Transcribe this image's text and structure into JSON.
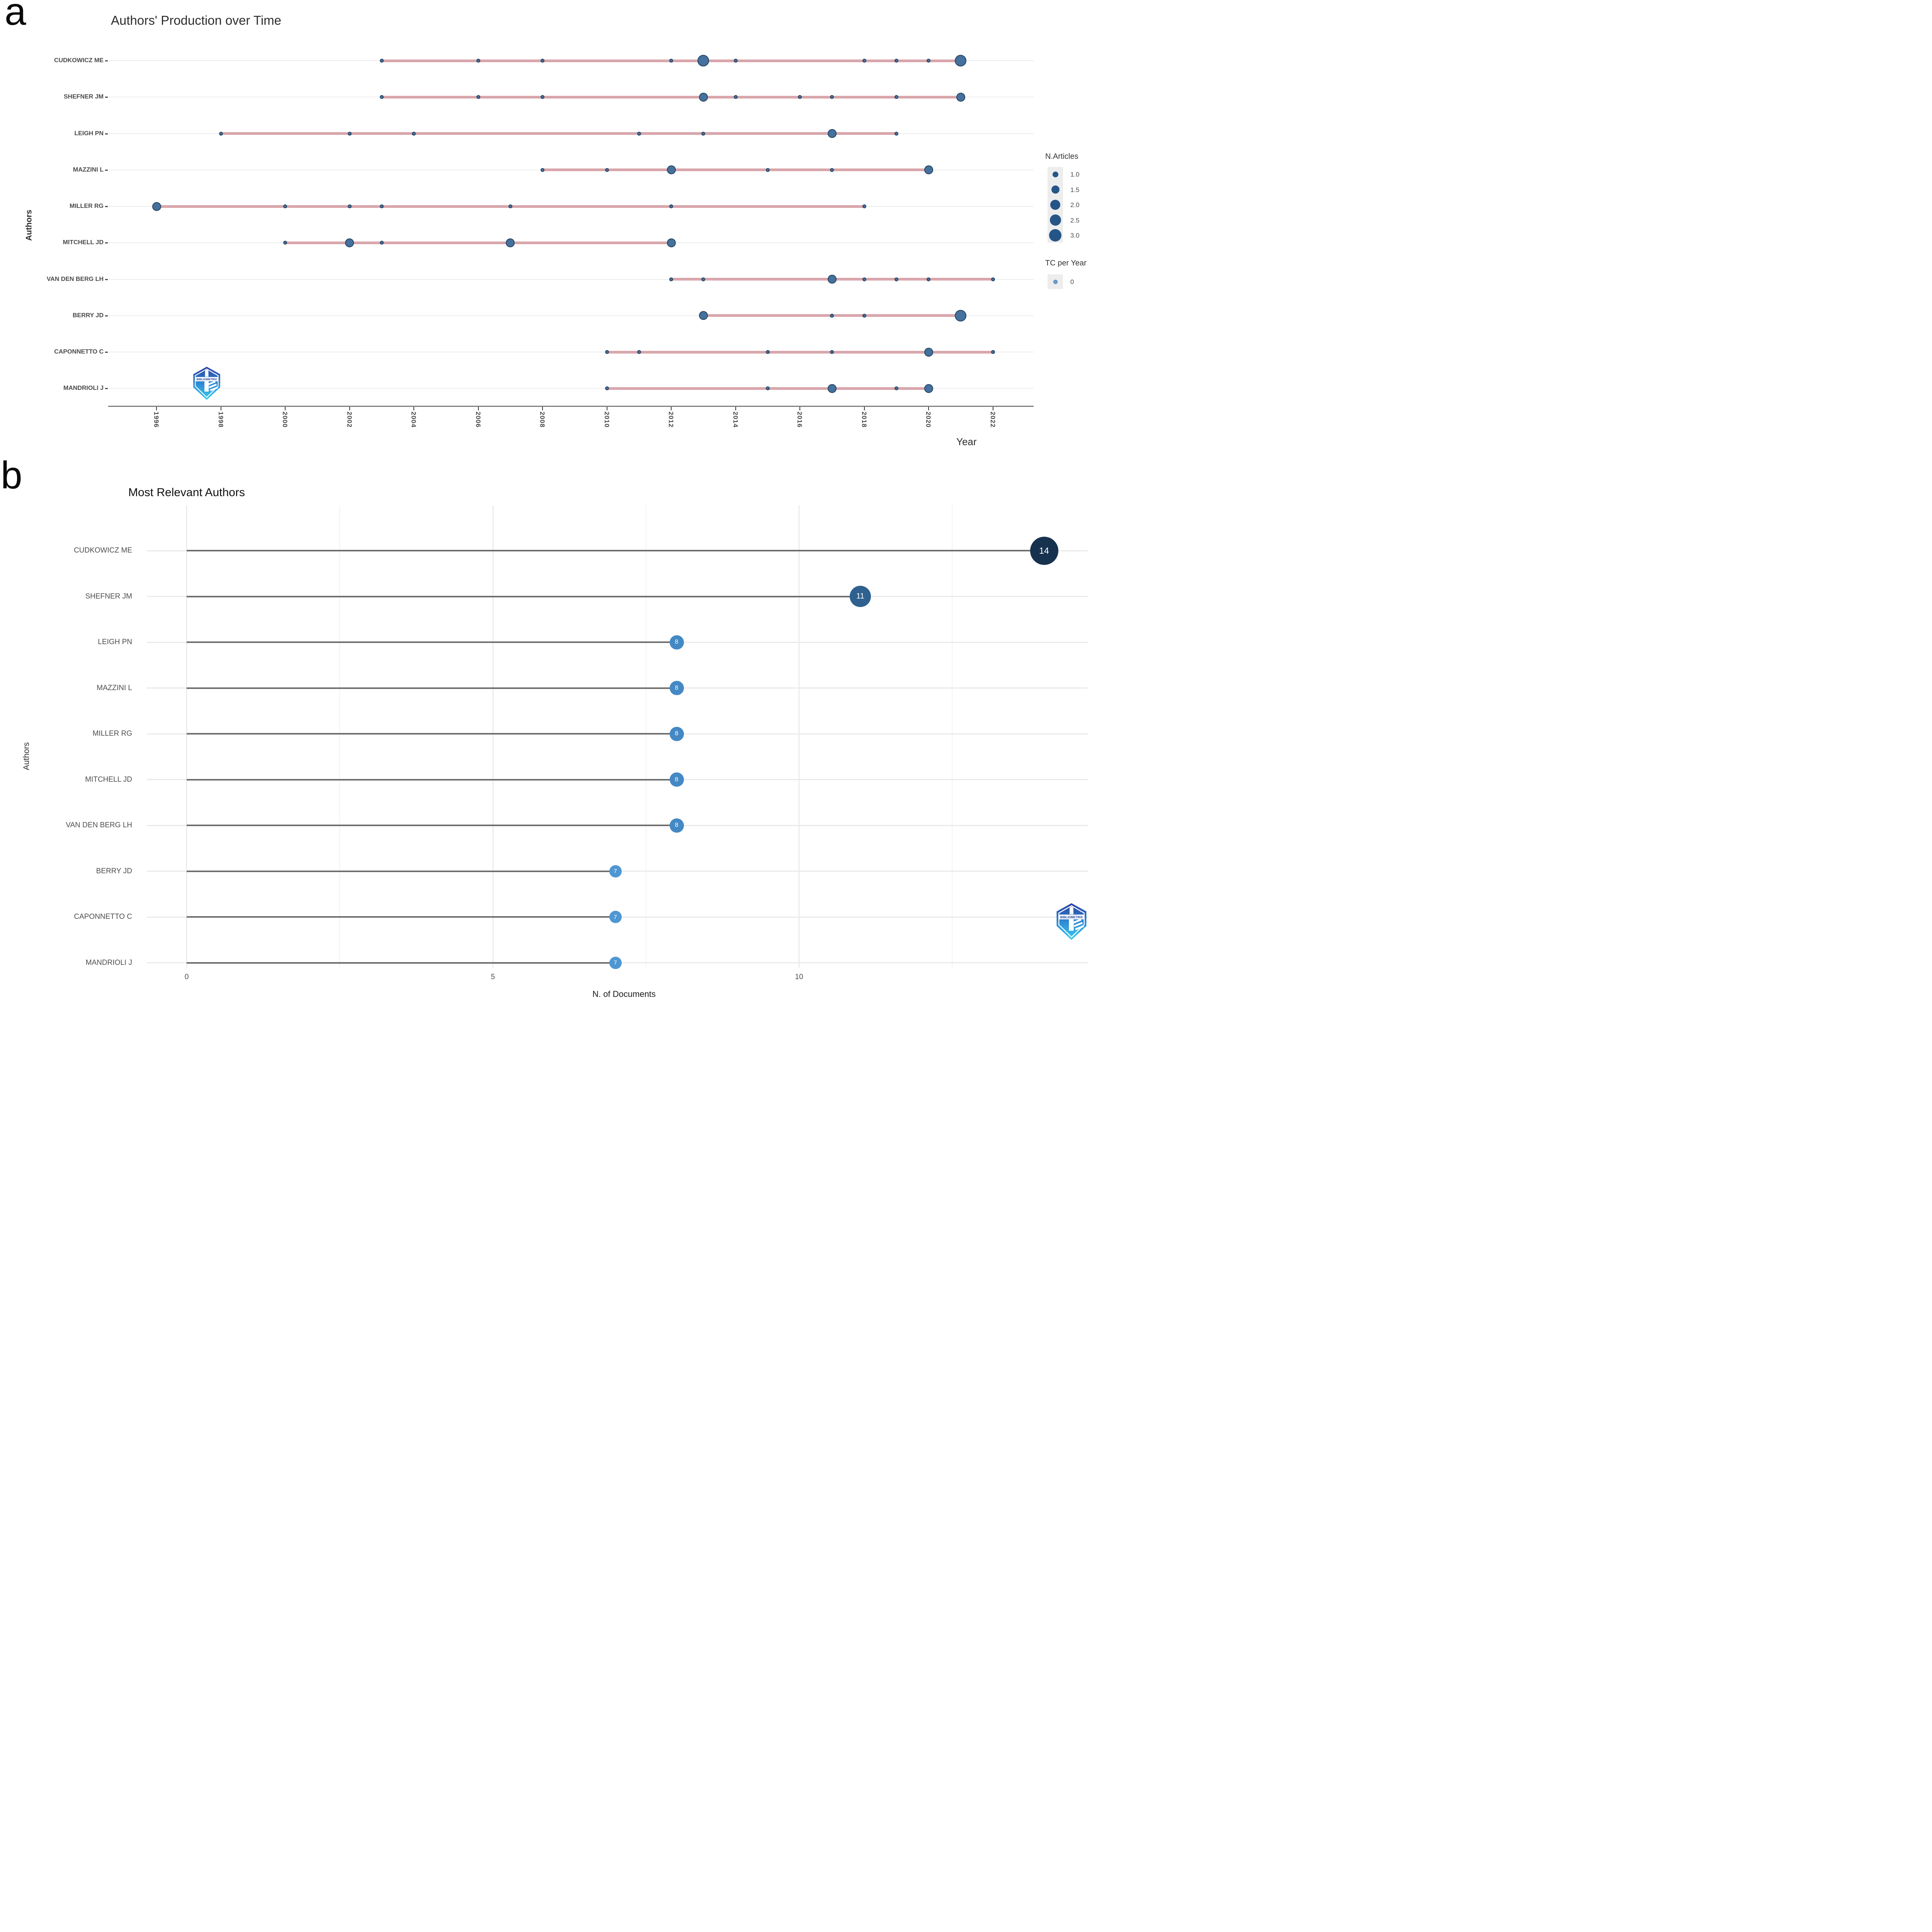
{
  "figure": {
    "panel_a_letter": "a",
    "panel_b_letter": "b",
    "logo_text": "BIBLIOMETRIX"
  },
  "chart_data": [
    {
      "type": "scatter",
      "title": "Authors' Production over Time",
      "xlabel": "Year",
      "ylabel": "Authors",
      "x_ticks": [
        1996,
        1998,
        2000,
        2002,
        2004,
        2006,
        2008,
        2010,
        2012,
        2014,
        2016,
        2018,
        2020,
        2022
      ],
      "x_domain": [
        1994.5,
        2023.6
      ],
      "point_color": "#44719d",
      "timeline_color": "#d9a6ab",
      "legend": {
        "size_title": "N.Articles",
        "size_values": [
          "1.0",
          "1.5",
          "2.0",
          "2.5",
          "3.0"
        ],
        "color_title": "TC per Year",
        "color_values": [
          "0"
        ]
      },
      "series": [
        {
          "author": "CUDKOWICZ ME",
          "points": [
            [
              2003,
              1
            ],
            [
              2006,
              1
            ],
            [
              2008,
              1
            ],
            [
              2012,
              1
            ],
            [
              2013,
              3
            ],
            [
              2014,
              1
            ],
            [
              2018,
              1
            ],
            [
              2019,
              1
            ],
            [
              2020,
              1
            ],
            [
              2021,
              3
            ]
          ]
        },
        {
          "author": "SHEFNER JM",
          "points": [
            [
              2003,
              1
            ],
            [
              2006,
              1
            ],
            [
              2008,
              1
            ],
            [
              2013,
              2
            ],
            [
              2014,
              1
            ],
            [
              2016,
              1
            ],
            [
              2017,
              1
            ],
            [
              2019,
              1
            ],
            [
              2021,
              2
            ]
          ]
        },
        {
          "author": "LEIGH PN",
          "points": [
            [
              1998,
              1
            ],
            [
              2002,
              1
            ],
            [
              2004,
              1
            ],
            [
              2011,
              1
            ],
            [
              2013,
              1
            ],
            [
              2017,
              2
            ],
            [
              2019,
              1
            ]
          ]
        },
        {
          "author": "MAZZINI L",
          "points": [
            [
              2008,
              1
            ],
            [
              2010,
              1
            ],
            [
              2012,
              2
            ],
            [
              2015,
              1
            ],
            [
              2017,
              1
            ],
            [
              2020,
              2
            ]
          ]
        },
        {
          "author": "MILLER RG",
          "points": [
            [
              1996,
              2
            ],
            [
              2000,
              1
            ],
            [
              2002,
              1
            ],
            [
              2003,
              1
            ],
            [
              2007,
              1
            ],
            [
              2012,
              1
            ],
            [
              2018,
              1
            ]
          ]
        },
        {
          "author": "MITCHELL JD",
          "points": [
            [
              2000,
              1
            ],
            [
              2002,
              2
            ],
            [
              2003,
              1
            ],
            [
              2007,
              2
            ],
            [
              2012,
              2
            ]
          ]
        },
        {
          "author": "VAN DEN BERG LH",
          "points": [
            [
              2012,
              1
            ],
            [
              2013,
              1
            ],
            [
              2017,
              2
            ],
            [
              2018,
              1
            ],
            [
              2019,
              1
            ],
            [
              2020,
              1
            ],
            [
              2022,
              1
            ]
          ]
        },
        {
          "author": "BERRY JD",
          "points": [
            [
              2013,
              2
            ],
            [
              2017,
              1
            ],
            [
              2018,
              1
            ],
            [
              2021,
              3
            ]
          ]
        },
        {
          "author": "CAPONNETTO C",
          "points": [
            [
              2010,
              1
            ],
            [
              2011,
              1
            ],
            [
              2015,
              1
            ],
            [
              2017,
              1
            ],
            [
              2020,
              2
            ],
            [
              2022,
              1
            ]
          ]
        },
        {
          "author": "MANDRIOLI J",
          "points": [
            [
              2010,
              1
            ],
            [
              2015,
              1
            ],
            [
              2017,
              2
            ],
            [
              2019,
              1
            ],
            [
              2020,
              2
            ]
          ]
        }
      ]
    },
    {
      "type": "bar",
      "subtype": "lollipop",
      "title": "Most Relevant Authors",
      "xlabel": "N. of Documents",
      "ylabel": "Authors",
      "x_ticks": [
        0,
        5,
        10
      ],
      "x_minor_ticks": [
        2.5,
        7.5,
        12.5
      ],
      "xlim": [
        0,
        14.7
      ],
      "grid": true,
      "categories": [
        "CUDKOWICZ ME",
        "SHEFNER JM",
        "LEIGH PN",
        "MAZZINI L",
        "MILLER RG",
        "MITCHELL JD",
        "VAN DEN BERG LH",
        "BERRY JD",
        "CAPONNETTO C",
        "MANDRIOLI J"
      ],
      "values": [
        14,
        11,
        8,
        8,
        8,
        8,
        8,
        7,
        7,
        7
      ],
      "dot_colors": [
        "#16324f",
        "#2e618f",
        "#4489c4",
        "#4489c4",
        "#4489c4",
        "#4489c4",
        "#4489c4",
        "#4f97d3",
        "#4f97d3",
        "#4f97d3"
      ]
    }
  ]
}
